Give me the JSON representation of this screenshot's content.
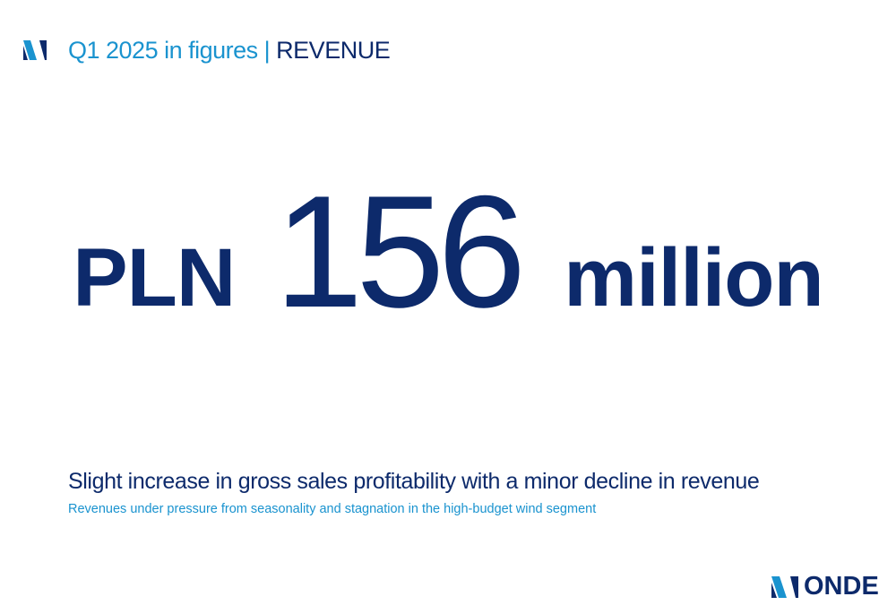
{
  "header": {
    "title_part1": "Q1 2025 in figures | ",
    "title_part2": "REVENUE",
    "mark_icon": "onde-mark-icon"
  },
  "hero": {
    "currency": "PLN",
    "number": "156",
    "unit": "million"
  },
  "summary": {
    "headline": "Slight increase in gross sales profitability with a minor decline in revenue",
    "subline": "Revenues under pressure from seasonality and stagnation in the high-budget wind segment"
  },
  "logo": {
    "text": "ONDE",
    "mark_icon": "onde-mark-icon"
  },
  "colors": {
    "navy": "#0d2a6b",
    "blue": "#1a93cf",
    "background": "#ffffff"
  }
}
